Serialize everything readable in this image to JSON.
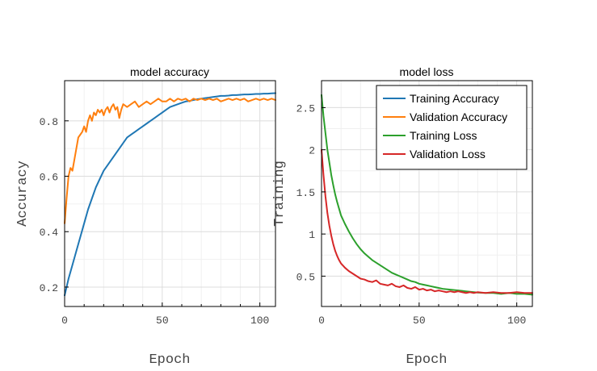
{
  "chart_data": [
    {
      "type": "line",
      "title": "model accuracy",
      "xlabel": "Epoch",
      "ylabel": "Accuracy",
      "xlim": [
        0,
        108
      ],
      "ylim": [
        0.13,
        0.945
      ],
      "xticks": [
        0,
        50,
        100
      ],
      "yticks": [
        0.2,
        0.4,
        0.6,
        0.8
      ],
      "ytick_labels": [
        "0.2",
        "0.4",
        "0.6",
        "0.8"
      ],
      "grid": true,
      "series": [
        {
          "color": "#1f77b4",
          "points": [
            [
              0,
              0.17
            ],
            [
              2,
              0.23
            ],
            [
              4,
              0.28
            ],
            [
              6,
              0.33
            ],
            [
              8,
              0.38
            ],
            [
              10,
              0.43
            ],
            [
              12,
              0.48
            ],
            [
              14,
              0.52
            ],
            [
              16,
              0.56
            ],
            [
              18,
              0.59
            ],
            [
              20,
              0.62
            ],
            [
              22,
              0.64
            ],
            [
              24,
              0.66
            ],
            [
              26,
              0.68
            ],
            [
              28,
              0.7
            ],
            [
              30,
              0.72
            ],
            [
              32,
              0.74
            ],
            [
              34,
              0.75
            ],
            [
              36,
              0.76
            ],
            [
              38,
              0.77
            ],
            [
              40,
              0.78
            ],
            [
              42,
              0.79
            ],
            [
              44,
              0.8
            ],
            [
              46,
              0.81
            ],
            [
              48,
              0.82
            ],
            [
              50,
              0.83
            ],
            [
              52,
              0.84
            ],
            [
              54,
              0.85
            ],
            [
              56,
              0.855
            ],
            [
              58,
              0.86
            ],
            [
              60,
              0.865
            ],
            [
              62,
              0.87
            ],
            [
              64,
              0.872
            ],
            [
              66,
              0.875
            ],
            [
              68,
              0.878
            ],
            [
              70,
              0.88
            ],
            [
              72,
              0.882
            ],
            [
              74,
              0.884
            ],
            [
              76,
              0.886
            ],
            [
              78,
              0.888
            ],
            [
              80,
              0.89
            ],
            [
              82,
              0.89
            ],
            [
              84,
              0.891
            ],
            [
              86,
              0.893
            ],
            [
              88,
              0.893
            ],
            [
              90,
              0.894
            ],
            [
              92,
              0.895
            ],
            [
              94,
              0.895
            ],
            [
              96,
              0.896
            ],
            [
              98,
              0.897
            ],
            [
              100,
              0.897
            ],
            [
              102,
              0.898
            ],
            [
              104,
              0.898
            ],
            [
              106,
              0.899
            ],
            [
              108,
              0.9
            ]
          ]
        },
        {
          "color": "#ff7f0e",
          "points": [
            [
              0,
              0.43
            ],
            [
              1,
              0.52
            ],
            [
              2,
              0.6
            ],
            [
              3,
              0.63
            ],
            [
              4,
              0.62
            ],
            [
              5,
              0.66
            ],
            [
              6,
              0.7
            ],
            [
              7,
              0.74
            ],
            [
              8,
              0.75
            ],
            [
              9,
              0.76
            ],
            [
              10,
              0.78
            ],
            [
              11,
              0.76
            ],
            [
              12,
              0.8
            ],
            [
              13,
              0.82
            ],
            [
              14,
              0.8
            ],
            [
              15,
              0.83
            ],
            [
              16,
              0.82
            ],
            [
              17,
              0.84
            ],
            [
              18,
              0.83
            ],
            [
              19,
              0.84
            ],
            [
              20,
              0.82
            ],
            [
              21,
              0.84
            ],
            [
              22,
              0.85
            ],
            [
              23,
              0.83
            ],
            [
              24,
              0.85
            ],
            [
              25,
              0.86
            ],
            [
              26,
              0.84
            ],
            [
              27,
              0.85
            ],
            [
              28,
              0.81
            ],
            [
              29,
              0.84
            ],
            [
              30,
              0.86
            ],
            [
              32,
              0.85
            ],
            [
              34,
              0.86
            ],
            [
              36,
              0.87
            ],
            [
              38,
              0.85
            ],
            [
              40,
              0.86
            ],
            [
              42,
              0.87
            ],
            [
              44,
              0.86
            ],
            [
              46,
              0.87
            ],
            [
              48,
              0.88
            ],
            [
              50,
              0.87
            ],
            [
              52,
              0.87
            ],
            [
              54,
              0.88
            ],
            [
              56,
              0.87
            ],
            [
              58,
              0.88
            ],
            [
              60,
              0.875
            ],
            [
              62,
              0.88
            ],
            [
              64,
              0.87
            ],
            [
              66,
              0.88
            ],
            [
              68,
              0.875
            ],
            [
              70,
              0.88
            ],
            [
              72,
              0.875
            ],
            [
              74,
              0.88
            ],
            [
              76,
              0.875
            ],
            [
              78,
              0.88
            ],
            [
              80,
              0.87
            ],
            [
              82,
              0.875
            ],
            [
              84,
              0.88
            ],
            [
              86,
              0.875
            ],
            [
              88,
              0.88
            ],
            [
              90,
              0.875
            ],
            [
              92,
              0.88
            ],
            [
              94,
              0.87
            ],
            [
              96,
              0.875
            ],
            [
              98,
              0.88
            ],
            [
              100,
              0.875
            ],
            [
              102,
              0.88
            ],
            [
              104,
              0.875
            ],
            [
              106,
              0.88
            ],
            [
              108,
              0.875
            ]
          ]
        }
      ]
    },
    {
      "type": "line",
      "title": "model loss",
      "xlabel": "Epoch",
      "ylabel": "Training",
      "xlim": [
        0,
        108
      ],
      "ylim": [
        0.14,
        2.82
      ],
      "xticks": [
        0,
        50,
        100
      ],
      "yticks": [
        0.5,
        1,
        1.5,
        2,
        2.5
      ],
      "ytick_labels": [
        "0.5",
        "1",
        "1.5",
        "2",
        "2.5"
      ],
      "grid": true,
      "legend": {
        "position": "top-right",
        "entries": [
          {
            "label": "Training Accuracy",
            "color": "#1f77b4"
          },
          {
            "label": "Validation Accuracy",
            "color": "#ff7f0e"
          },
          {
            "label": "Training Loss",
            "color": "#2ca02c"
          },
          {
            "label": "Validation Loss",
            "color": "#d62728"
          }
        ]
      },
      "series": [
        {
          "color": "#2ca02c",
          "points": [
            [
              0,
              2.65
            ],
            [
              1,
              2.4
            ],
            [
              2,
              2.2
            ],
            [
              3,
              2.0
            ],
            [
              4,
              1.85
            ],
            [
              5,
              1.7
            ],
            [
              6,
              1.58
            ],
            [
              7,
              1.47
            ],
            [
              8,
              1.38
            ],
            [
              9,
              1.3
            ],
            [
              10,
              1.22
            ],
            [
              12,
              1.12
            ],
            [
              14,
              1.03
            ],
            [
              16,
              0.95
            ],
            [
              18,
              0.88
            ],
            [
              20,
              0.82
            ],
            [
              22,
              0.77
            ],
            [
              24,
              0.73
            ],
            [
              26,
              0.69
            ],
            [
              28,
              0.66
            ],
            [
              30,
              0.63
            ],
            [
              32,
              0.6
            ],
            [
              34,
              0.57
            ],
            [
              36,
              0.54
            ],
            [
              38,
              0.52
            ],
            [
              40,
              0.5
            ],
            [
              42,
              0.48
            ],
            [
              44,
              0.46
            ],
            [
              46,
              0.44
            ],
            [
              48,
              0.43
            ],
            [
              50,
              0.41
            ],
            [
              52,
              0.4
            ],
            [
              54,
              0.39
            ],
            [
              56,
              0.38
            ],
            [
              58,
              0.37
            ],
            [
              60,
              0.36
            ],
            [
              62,
              0.35
            ],
            [
              64,
              0.345
            ],
            [
              66,
              0.34
            ],
            [
              68,
              0.335
            ],
            [
              70,
              0.33
            ],
            [
              72,
              0.325
            ],
            [
              74,
              0.32
            ],
            [
              76,
              0.315
            ],
            [
              78,
              0.31
            ],
            [
              80,
              0.305
            ],
            [
              84,
              0.3
            ],
            [
              88,
              0.3
            ],
            [
              92,
              0.29
            ],
            [
              96,
              0.3
            ],
            [
              100,
              0.29
            ],
            [
              104,
              0.29
            ],
            [
              108,
              0.28
            ]
          ]
        },
        {
          "color": "#d62728",
          "points": [
            [
              0,
              2.0
            ],
            [
              1,
              1.7
            ],
            [
              2,
              1.45
            ],
            [
              3,
              1.25
            ],
            [
              4,
              1.1
            ],
            [
              5,
              0.98
            ],
            [
              6,
              0.88
            ],
            [
              7,
              0.8
            ],
            [
              8,
              0.74
            ],
            [
              9,
              0.69
            ],
            [
              10,
              0.65
            ],
            [
              12,
              0.6
            ],
            [
              14,
              0.56
            ],
            [
              16,
              0.53
            ],
            [
              18,
              0.5
            ],
            [
              20,
              0.47
            ],
            [
              22,
              0.46
            ],
            [
              24,
              0.44
            ],
            [
              26,
              0.43
            ],
            [
              28,
              0.45
            ],
            [
              30,
              0.41
            ],
            [
              32,
              0.4
            ],
            [
              34,
              0.39
            ],
            [
              36,
              0.41
            ],
            [
              38,
              0.38
            ],
            [
              40,
              0.37
            ],
            [
              42,
              0.39
            ],
            [
              44,
              0.36
            ],
            [
              46,
              0.35
            ],
            [
              48,
              0.37
            ],
            [
              50,
              0.34
            ],
            [
              52,
              0.35
            ],
            [
              54,
              0.33
            ],
            [
              56,
              0.34
            ],
            [
              58,
              0.32
            ],
            [
              60,
              0.33
            ],
            [
              62,
              0.32
            ],
            [
              64,
              0.31
            ],
            [
              66,
              0.32
            ],
            [
              68,
              0.31
            ],
            [
              70,
              0.32
            ],
            [
              72,
              0.31
            ],
            [
              74,
              0.3
            ],
            [
              76,
              0.31
            ],
            [
              78,
              0.3
            ],
            [
              80,
              0.31
            ],
            [
              84,
              0.3
            ],
            [
              88,
              0.31
            ],
            [
              92,
              0.3
            ],
            [
              96,
              0.3
            ],
            [
              100,
              0.31
            ],
            [
              104,
              0.3
            ],
            [
              108,
              0.3
            ]
          ]
        }
      ]
    }
  ]
}
